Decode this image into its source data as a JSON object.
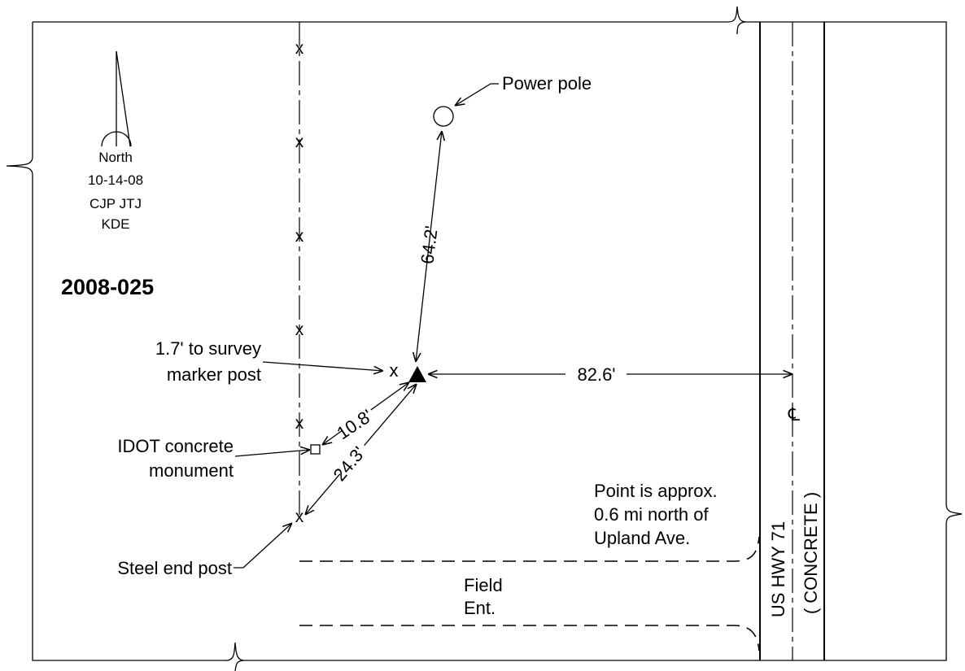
{
  "north_arrow": {
    "label": "North",
    "date": "10-14-08",
    "crew_line1": "CJP JTJ",
    "crew_line2": "KDE"
  },
  "station_id": "2008-025",
  "fence_marks": [
    "x",
    "x",
    "x",
    "x",
    "x"
  ],
  "labels": {
    "power_pole": "Power pole",
    "survey_post_line1": "1.7' to survey",
    "survey_post_line2": "marker post",
    "idot_line1": "IDOT concrete",
    "idot_line2": "monument",
    "steel_post": "Steel end post",
    "field_line1": "Field",
    "field_line2": "Ent.",
    "note_line1": "Point is approx.",
    "note_line2": "0.6 mi north of",
    "note_line3": "Upland Ave.",
    "highway": "US HWY 71",
    "surface": "( CONCRETE )",
    "centerline_symbol": "℄"
  },
  "distances": {
    "to_pole": "64.2'",
    "to_centerline": "82.6'",
    "to_monument": "10.8'",
    "to_steel_post": "24.3'"
  },
  "marker_x": "x",
  "steel_post_x": "x"
}
